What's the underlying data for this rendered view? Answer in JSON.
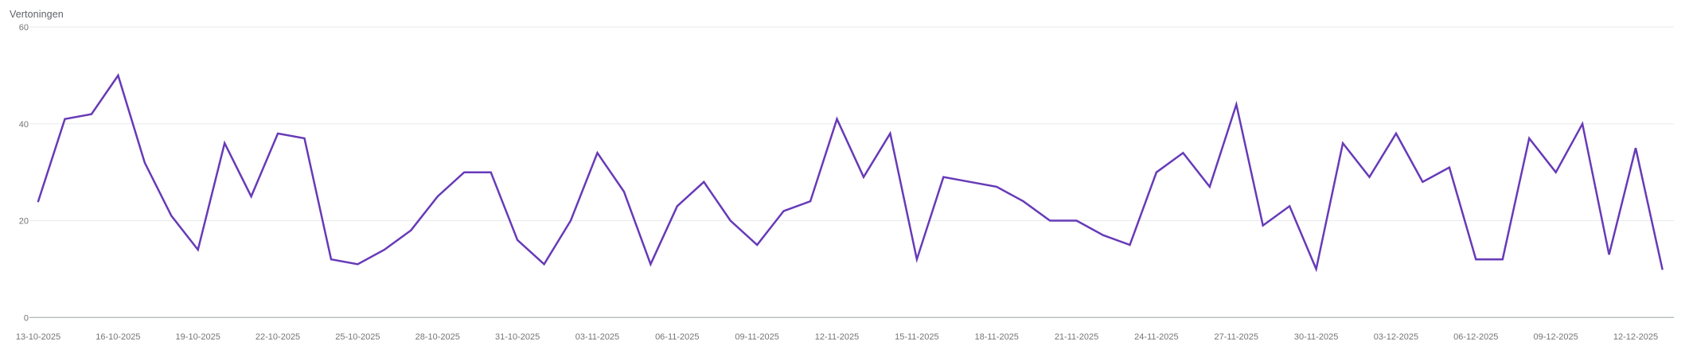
{
  "chart_data": {
    "type": "line",
    "title": "Vertoningen",
    "series_name": "Vertoningen",
    "x": [
      "13-10-2025",
      "14-10-2025",
      "15-10-2025",
      "16-10-2025",
      "17-10-2025",
      "18-10-2025",
      "19-10-2025",
      "20-10-2025",
      "21-10-2025",
      "22-10-2025",
      "23-10-2025",
      "24-10-2025",
      "25-10-2025",
      "26-10-2025",
      "27-10-2025",
      "28-10-2025",
      "29-10-2025",
      "30-10-2025",
      "31-10-2025",
      "01-11-2025",
      "02-11-2025",
      "03-11-2025",
      "04-11-2025",
      "05-11-2025",
      "06-11-2025",
      "07-11-2025",
      "08-11-2025",
      "09-11-2025",
      "10-11-2025",
      "11-11-2025",
      "12-11-2025",
      "13-11-2025",
      "14-11-2025",
      "15-11-2025",
      "16-11-2025",
      "17-11-2025",
      "18-11-2025",
      "19-11-2025",
      "20-11-2025",
      "21-11-2025",
      "22-11-2025",
      "23-11-2025",
      "24-11-2025",
      "25-11-2025",
      "26-11-2025",
      "27-11-2025",
      "28-11-2025",
      "29-11-2025",
      "30-11-2025",
      "01-12-2025",
      "02-12-2025",
      "03-12-2025",
      "04-12-2025",
      "05-12-2025",
      "06-12-2025",
      "07-12-2025",
      "08-12-2025",
      "09-12-2025",
      "10-12-2025",
      "11-12-2025",
      "12-12-2025",
      "13-12-2025"
    ],
    "values": [
      24,
      41,
      42,
      50,
      32,
      21,
      14,
      36,
      25,
      38,
      37,
      12,
      11,
      14,
      18,
      25,
      30,
      30,
      16,
      11,
      20,
      34,
      26,
      11,
      23,
      28,
      20,
      15,
      22,
      24,
      41,
      29,
      38,
      12,
      29,
      28,
      27,
      24,
      20,
      20,
      17,
      15,
      30,
      34,
      27,
      44,
      19,
      23,
      10,
      36,
      29,
      38,
      28,
      31,
      12,
      12,
      37,
      30,
      40,
      13,
      35,
      10
    ],
    "x_tick_labels": [
      "13-10-2025",
      "16-10-2025",
      "19-10-2025",
      "22-10-2025",
      "25-10-2025",
      "28-10-2025",
      "31-10-2025",
      "03-11-2025",
      "06-11-2025",
      "09-11-2025",
      "12-11-2025",
      "15-11-2025",
      "18-11-2025",
      "21-11-2025",
      "24-11-2025",
      "27-11-2025",
      "30-11-2025",
      "03-12-2025",
      "06-12-2025",
      "09-12-2025",
      "12-12-2025"
    ],
    "x_tick_every_n_points": 3,
    "y_ticks": [
      0,
      20,
      40,
      60
    ],
    "ylim": [
      0,
      60
    ],
    "grid": "horizontal-only",
    "legend": "none",
    "markers": "none",
    "colors": {
      "line": "#673ab7",
      "gridline": "#e8eaed",
      "axis_line": "#9aa0a6",
      "tick_text": "#757575",
      "title_text": "#5f6368",
      "background": "#ffffff"
    }
  }
}
